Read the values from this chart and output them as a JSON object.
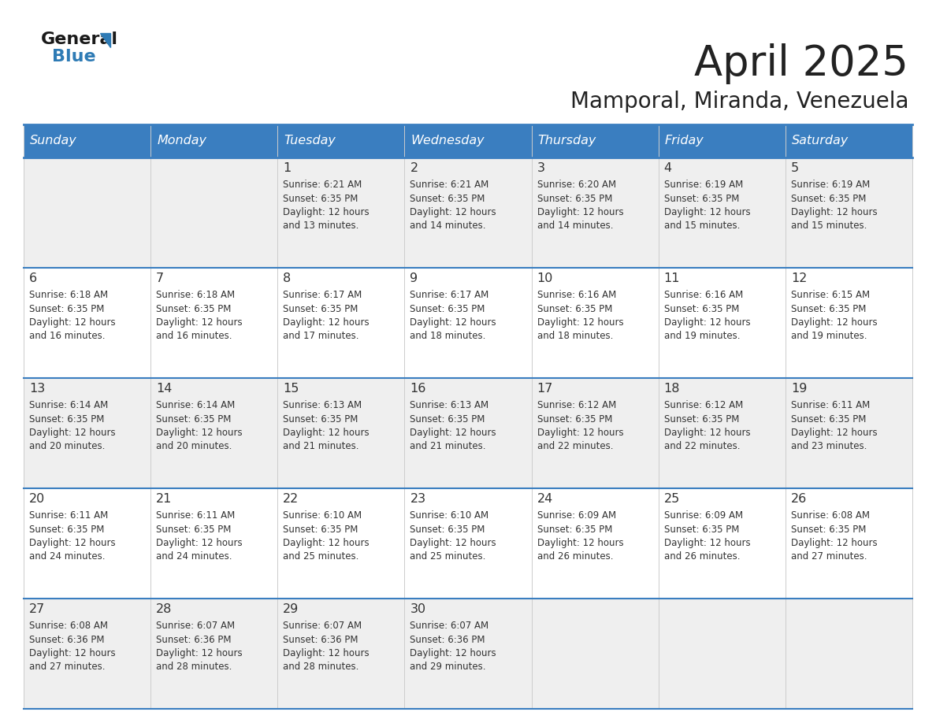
{
  "title": "April 2025",
  "subtitle": "Mamporal, Miranda, Venezuela",
  "header_bg": "#3A7EC0",
  "header_text": "#FFFFFF",
  "day_headers": [
    "Sunday",
    "Monday",
    "Tuesday",
    "Wednesday",
    "Thursday",
    "Friday",
    "Saturday"
  ],
  "row_bg_light": "#EFEFEF",
  "row_bg_white": "#FFFFFF",
  "cell_text_color": "#333333",
  "border_color": "#3A7EC0",
  "title_color": "#222222",
  "subtitle_color": "#222222",
  "days": [
    {
      "day": null,
      "info": null
    },
    {
      "day": null,
      "info": null
    },
    {
      "day": 1,
      "info": {
        "sunrise": "6:21 AM",
        "sunset": "6:35 PM",
        "daylight": "12 hours and 13 minutes."
      }
    },
    {
      "day": 2,
      "info": {
        "sunrise": "6:21 AM",
        "sunset": "6:35 PM",
        "daylight": "12 hours and 14 minutes."
      }
    },
    {
      "day": 3,
      "info": {
        "sunrise": "6:20 AM",
        "sunset": "6:35 PM",
        "daylight": "12 hours and 14 minutes."
      }
    },
    {
      "day": 4,
      "info": {
        "sunrise": "6:19 AM",
        "sunset": "6:35 PM",
        "daylight": "12 hours and 15 minutes."
      }
    },
    {
      "day": 5,
      "info": {
        "sunrise": "6:19 AM",
        "sunset": "6:35 PM",
        "daylight": "12 hours and 15 minutes."
      }
    },
    {
      "day": 6,
      "info": {
        "sunrise": "6:18 AM",
        "sunset": "6:35 PM",
        "daylight": "12 hours and 16 minutes."
      }
    },
    {
      "day": 7,
      "info": {
        "sunrise": "6:18 AM",
        "sunset": "6:35 PM",
        "daylight": "12 hours and 16 minutes."
      }
    },
    {
      "day": 8,
      "info": {
        "sunrise": "6:17 AM",
        "sunset": "6:35 PM",
        "daylight": "12 hours and 17 minutes."
      }
    },
    {
      "day": 9,
      "info": {
        "sunrise": "6:17 AM",
        "sunset": "6:35 PM",
        "daylight": "12 hours and 18 minutes."
      }
    },
    {
      "day": 10,
      "info": {
        "sunrise": "6:16 AM",
        "sunset": "6:35 PM",
        "daylight": "12 hours and 18 minutes."
      }
    },
    {
      "day": 11,
      "info": {
        "sunrise": "6:16 AM",
        "sunset": "6:35 PM",
        "daylight": "12 hours and 19 minutes."
      }
    },
    {
      "day": 12,
      "info": {
        "sunrise": "6:15 AM",
        "sunset": "6:35 PM",
        "daylight": "12 hours and 19 minutes."
      }
    },
    {
      "day": 13,
      "info": {
        "sunrise": "6:14 AM",
        "sunset": "6:35 PM",
        "daylight": "12 hours and 20 minutes."
      }
    },
    {
      "day": 14,
      "info": {
        "sunrise": "6:14 AM",
        "sunset": "6:35 PM",
        "daylight": "12 hours and 20 minutes."
      }
    },
    {
      "day": 15,
      "info": {
        "sunrise": "6:13 AM",
        "sunset": "6:35 PM",
        "daylight": "12 hours and 21 minutes."
      }
    },
    {
      "day": 16,
      "info": {
        "sunrise": "6:13 AM",
        "sunset": "6:35 PM",
        "daylight": "12 hours and 21 minutes."
      }
    },
    {
      "day": 17,
      "info": {
        "sunrise": "6:12 AM",
        "sunset": "6:35 PM",
        "daylight": "12 hours and 22 minutes."
      }
    },
    {
      "day": 18,
      "info": {
        "sunrise": "6:12 AM",
        "sunset": "6:35 PM",
        "daylight": "12 hours and 22 minutes."
      }
    },
    {
      "day": 19,
      "info": {
        "sunrise": "6:11 AM",
        "sunset": "6:35 PM",
        "daylight": "12 hours and 23 minutes."
      }
    },
    {
      "day": 20,
      "info": {
        "sunrise": "6:11 AM",
        "sunset": "6:35 PM",
        "daylight": "12 hours and 24 minutes."
      }
    },
    {
      "day": 21,
      "info": {
        "sunrise": "6:11 AM",
        "sunset": "6:35 PM",
        "daylight": "12 hours and 24 minutes."
      }
    },
    {
      "day": 22,
      "info": {
        "sunrise": "6:10 AM",
        "sunset": "6:35 PM",
        "daylight": "12 hours and 25 minutes."
      }
    },
    {
      "day": 23,
      "info": {
        "sunrise": "6:10 AM",
        "sunset": "6:35 PM",
        "daylight": "12 hours and 25 minutes."
      }
    },
    {
      "day": 24,
      "info": {
        "sunrise": "6:09 AM",
        "sunset": "6:35 PM",
        "daylight": "12 hours and 26 minutes."
      }
    },
    {
      "day": 25,
      "info": {
        "sunrise": "6:09 AM",
        "sunset": "6:35 PM",
        "daylight": "12 hours and 26 minutes."
      }
    },
    {
      "day": 26,
      "info": {
        "sunrise": "6:08 AM",
        "sunset": "6:35 PM",
        "daylight": "12 hours and 27 minutes."
      }
    },
    {
      "day": 27,
      "info": {
        "sunrise": "6:08 AM",
        "sunset": "6:36 PM",
        "daylight": "12 hours and 27 minutes."
      }
    },
    {
      "day": 28,
      "info": {
        "sunrise": "6:07 AM",
        "sunset": "6:36 PM",
        "daylight": "12 hours and 28 minutes."
      }
    },
    {
      "day": 29,
      "info": {
        "sunrise": "6:07 AM",
        "sunset": "6:36 PM",
        "daylight": "12 hours and 28 minutes."
      }
    },
    {
      "day": 30,
      "info": {
        "sunrise": "6:07 AM",
        "sunset": "6:36 PM",
        "daylight": "12 hours and 29 minutes."
      }
    },
    {
      "day": null,
      "info": null
    },
    {
      "day": null,
      "info": null
    },
    {
      "day": null,
      "info": null
    }
  ]
}
